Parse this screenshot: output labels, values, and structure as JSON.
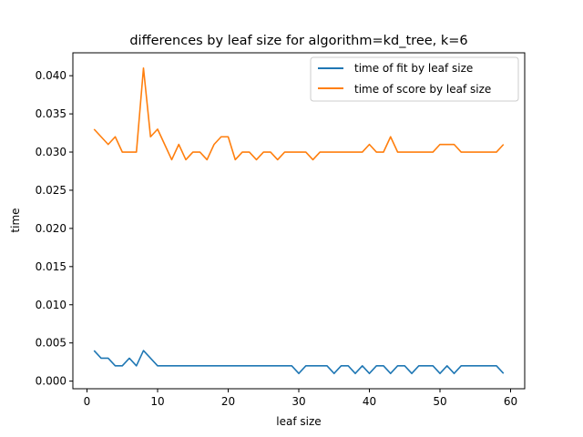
{
  "chart_data": {
    "type": "line",
    "title": "differences by leaf size for algorithm=kd_tree, k=6",
    "xlabel": "leaf size",
    "ylabel": "time",
    "xlim": [
      -2,
      62
    ],
    "ylim": [
      -0.001,
      0.043
    ],
    "xticks": [
      0,
      10,
      20,
      30,
      40,
      50,
      60
    ],
    "yticks": [
      0.0,
      0.005,
      0.01,
      0.015,
      0.02,
      0.025,
      0.03,
      0.035,
      0.04
    ],
    "ytick_labels": [
      "0.000",
      "0.005",
      "0.010",
      "0.015",
      "0.020",
      "0.025",
      "0.030",
      "0.035",
      "0.040"
    ],
    "grid": false,
    "legend_position": "upper right",
    "x": [
      1,
      2,
      3,
      4,
      5,
      6,
      7,
      8,
      9,
      10,
      11,
      12,
      13,
      14,
      15,
      16,
      17,
      18,
      19,
      20,
      21,
      22,
      23,
      24,
      25,
      26,
      27,
      28,
      29,
      30,
      31,
      32,
      33,
      34,
      35,
      36,
      37,
      38,
      39,
      40,
      41,
      42,
      43,
      44,
      45,
      46,
      47,
      48,
      49,
      50,
      51,
      52,
      53,
      54,
      55,
      56,
      57,
      58,
      59
    ],
    "series": [
      {
        "name": "time of fit by leaf size",
        "color": "#1f77b4",
        "values": [
          0.004,
          0.003,
          0.003,
          0.002,
          0.002,
          0.003,
          0.002,
          0.004,
          0.003,
          0.002,
          0.002,
          0.002,
          0.002,
          0.002,
          0.002,
          0.002,
          0.002,
          0.002,
          0.002,
          0.002,
          0.002,
          0.002,
          0.002,
          0.002,
          0.002,
          0.002,
          0.002,
          0.002,
          0.002,
          0.001,
          0.002,
          0.002,
          0.002,
          0.002,
          0.001,
          0.002,
          0.002,
          0.001,
          0.002,
          0.001,
          0.002,
          0.002,
          0.001,
          0.002,
          0.002,
          0.001,
          0.002,
          0.002,
          0.002,
          0.001,
          0.002,
          0.001,
          0.002,
          0.002,
          0.002,
          0.002,
          0.002,
          0.002,
          0.001
        ]
      },
      {
        "name": "time of score by leaf size",
        "color": "#ff7f0e",
        "values": [
          0.033,
          0.032,
          0.031,
          0.032,
          0.03,
          0.03,
          0.03,
          0.041,
          0.032,
          0.033,
          0.031,
          0.029,
          0.031,
          0.029,
          0.03,
          0.03,
          0.029,
          0.031,
          0.032,
          0.032,
          0.029,
          0.03,
          0.03,
          0.029,
          0.03,
          0.03,
          0.029,
          0.03,
          0.03,
          0.03,
          0.03,
          0.029,
          0.03,
          0.03,
          0.03,
          0.03,
          0.03,
          0.03,
          0.03,
          0.031,
          0.03,
          0.03,
          0.032,
          0.03,
          0.03,
          0.03,
          0.03,
          0.03,
          0.03,
          0.031,
          0.031,
          0.031,
          0.03,
          0.03,
          0.03,
          0.03,
          0.03,
          0.03,
          0.031
        ]
      }
    ]
  }
}
